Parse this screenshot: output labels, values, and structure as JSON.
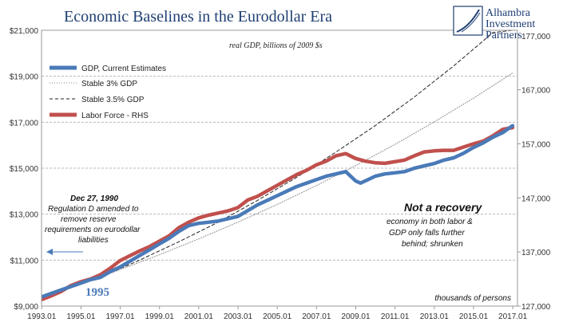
{
  "chart_data": {
    "type": "line",
    "title": "Economic Baselines in the Eurodollar Era",
    "subtitle": "real GDP, billions of 2009 $s",
    "x_tick_labels": [
      "1993.01",
      "1995.01",
      "1997.01",
      "1999.01",
      "2001.01",
      "2003.01",
      "2005.01",
      "2007.01",
      "2009.01",
      "2011.01",
      "2013.01",
      "2015.01",
      "2017.01"
    ],
    "xlim": [
      1993.0,
      2017.25
    ],
    "left_axis": {
      "ylim": [
        9000,
        21000
      ],
      "tick_labels": [
        "$9,000",
        "$11,000",
        "$13,000",
        "$15,000",
        "$17,000",
        "$19,000",
        "$21,000"
      ],
      "ticks": [
        9000,
        11000,
        13000,
        15000,
        17000,
        19000,
        21000
      ]
    },
    "right_axis": {
      "label": "thousands of persons",
      "ylim": [
        127000,
        178000
      ],
      "tick_labels": [
        "127,000",
        "137,000",
        "147,000",
        "157,000",
        "167,000",
        "177,000"
      ],
      "ticks": [
        127000,
        137000,
        147000,
        157000,
        167000,
        177000
      ]
    },
    "grid": true,
    "legend_placement": "top-left",
    "series": [
      {
        "name": "GDP, Current Estimates",
        "axis": "left",
        "color": "#4a7ab8",
        "style": "solid-thick",
        "x": [
          1993.0,
          1993.5,
          1994.0,
          1994.5,
          1995.0,
          1995.5,
          1996.0,
          1996.5,
          1997.0,
          1997.5,
          1998.0,
          1998.5,
          1999.0,
          1999.5,
          2000.0,
          2000.5,
          2001.0,
          2001.5,
          2002.0,
          2002.5,
          2003.0,
          2003.5,
          2004.0,
          2004.5,
          2005.0,
          2005.5,
          2006.0,
          2006.5,
          2007.0,
          2007.5,
          2008.0,
          2008.5,
          2009.0,
          2009.25,
          2009.5,
          2010.0,
          2010.5,
          2011.0,
          2011.5,
          2012.0,
          2012.5,
          2013.0,
          2013.5,
          2014.0,
          2014.5,
          2015.0,
          2015.5,
          2016.0,
          2016.5,
          2017.0
        ],
        "y": [
          9400,
          9550,
          9700,
          9850,
          10000,
          10150,
          10250,
          10500,
          10700,
          10950,
          11200,
          11450,
          11700,
          11950,
          12250,
          12500,
          12600,
          12650,
          12700,
          12800,
          12900,
          13150,
          13400,
          13600,
          13800,
          14000,
          14200,
          14350,
          14500,
          14650,
          14750,
          14850,
          14450,
          14350,
          14450,
          14650,
          14750,
          14800,
          14850,
          15000,
          15100,
          15200,
          15350,
          15450,
          15650,
          15900,
          16100,
          16350,
          16550,
          16850
        ]
      },
      {
        "name": "Stable 3% GDP",
        "axis": "left",
        "color": "#888888",
        "style": "dotted",
        "x": [
          1993.0,
          1995.0,
          1997.0,
          1999.0,
          2001.0,
          2003.0,
          2005.0,
          2007.0,
          2009.0,
          2011.0,
          2013.0,
          2015.0,
          2017.0
        ],
        "y": [
          9400,
          9970,
          10580,
          11230,
          11920,
          12650,
          13420,
          14240,
          15110,
          16030,
          17010,
          18040,
          19140
        ]
      },
      {
        "name": "Stable 3.5% GDP",
        "axis": "left",
        "color": "#222222",
        "style": "dashed",
        "x": [
          1996.0,
          1998.0,
          2000.0,
          2002.0,
          2004.0,
          2006.0,
          2008.0,
          2010.0,
          2012.0,
          2014.0,
          2016.0,
          2017.0
        ],
        "y": [
          10250,
          11000,
          11800,
          12650,
          13600,
          14600,
          15700,
          16850,
          18100,
          19450,
          20900,
          21000
        ]
      },
      {
        "name": "Labor Force - RHS",
        "axis": "right",
        "color": "#c0504d",
        "style": "solid-thick",
        "x": [
          1993.0,
          1993.5,
          1994.0,
          1994.5,
          1995.0,
          1995.5,
          1996.0,
          1996.5,
          1997.0,
          1997.5,
          1998.0,
          1998.5,
          1999.0,
          1999.5,
          2000.0,
          2000.5,
          2001.0,
          2001.5,
          2002.0,
          2002.5,
          2003.0,
          2003.5,
          2004.0,
          2004.5,
          2005.0,
          2005.5,
          2006.0,
          2006.5,
          2007.0,
          2007.5,
          2008.0,
          2008.5,
          2009.0,
          2009.5,
          2010.0,
          2010.5,
          2011.0,
          2011.5,
          2012.0,
          2012.5,
          2013.0,
          2013.5,
          2014.0,
          2014.5,
          2015.0,
          2015.5,
          2016.0,
          2016.5,
          2017.0
        ],
        "y": [
          128200,
          128900,
          129700,
          130800,
          131500,
          132000,
          132800,
          134000,
          135400,
          136300,
          137200,
          138000,
          139000,
          140000,
          141500,
          142500,
          143300,
          143800,
          144200,
          144600,
          145200,
          146600,
          147300,
          148300,
          149300,
          150300,
          151300,
          152100,
          153100,
          153800,
          154800,
          155200,
          154300,
          153800,
          153500,
          153400,
          153700,
          154000,
          154800,
          155500,
          155700,
          155800,
          155800,
          156400,
          157000,
          157500,
          158500,
          159700,
          160000
        ]
      }
    ],
    "annotations": {
      "date": "Dec 27, 1990",
      "note_lines": [
        "Regulation D amended to",
        "remove reserve",
        "requirements on eurodollar",
        "liabilities"
      ],
      "year_label": "1995",
      "recovery_title": "Not a recovery",
      "recovery_lines": [
        "economy in both labor &",
        "GDP only falls further",
        "behind; shrunken"
      ]
    }
  },
  "brand": {
    "lines": [
      "Alhambra",
      "Investment",
      "Partners"
    ]
  },
  "colors": {
    "title": "#1f3f73",
    "gdp": "#4a7ab8",
    "labor": "#c0504d",
    "grid": "#b8b8b8",
    "arrow": "#4a7ab8"
  }
}
